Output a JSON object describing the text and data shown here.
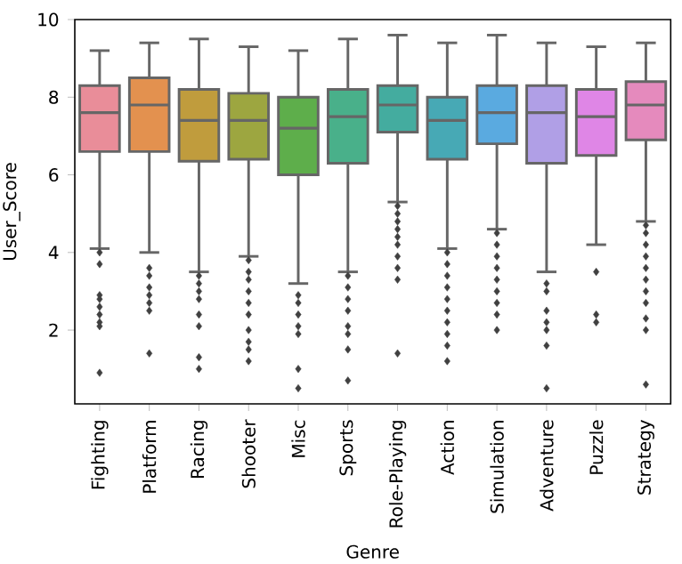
{
  "chart_data": {
    "type": "box",
    "xlabel": "Genre",
    "ylabel": "User_Score",
    "categories": [
      "Fighting",
      "Platform",
      "Racing",
      "Shooter",
      "Misc",
      "Sports",
      "Role-Playing",
      "Action",
      "Simulation",
      "Adventure",
      "Puzzle",
      "Strategy"
    ],
    "colors": [
      "#e98d99",
      "#e3914f",
      "#c09c3d",
      "#9da640",
      "#5eae4b",
      "#49b08a",
      "#44ac9f",
      "#47a9b5",
      "#5aaae0",
      "#b09fe6",
      "#df86e6",
      "#e58abd"
    ],
    "boxes": [
      {
        "low": 4.1,
        "q1": 6.6,
        "median": 7.6,
        "q3": 8.3,
        "high": 9.2,
        "outliers": [
          4.0,
          3.7,
          2.9,
          2.8,
          2.6,
          2.4,
          2.2,
          2.1,
          0.9
        ]
      },
      {
        "low": 4.0,
        "q1": 6.6,
        "median": 7.8,
        "q3": 8.5,
        "high": 9.4,
        "outliers": [
          3.6,
          3.4,
          3.1,
          2.9,
          2.7,
          2.5,
          1.4
        ]
      },
      {
        "low": 3.5,
        "q1": 6.35,
        "median": 7.4,
        "q3": 8.2,
        "high": 9.5,
        "outliers": [
          3.4,
          3.2,
          3.0,
          2.8,
          2.4,
          2.1,
          1.3,
          1.0
        ]
      },
      {
        "low": 3.9,
        "q1": 6.4,
        "median": 7.4,
        "q3": 8.1,
        "high": 9.3,
        "outliers": [
          3.8,
          3.5,
          3.3,
          3.0,
          2.7,
          2.4,
          2.0,
          1.7,
          1.5,
          1.2
        ]
      },
      {
        "low": 3.2,
        "q1": 6.0,
        "median": 7.2,
        "q3": 8.0,
        "high": 9.2,
        "outliers": [
          2.9,
          2.7,
          2.4,
          2.1,
          1.9,
          1.0,
          0.5
        ]
      },
      {
        "low": 3.5,
        "q1": 6.3,
        "median": 7.5,
        "q3": 8.2,
        "high": 9.5,
        "outliers": [
          3.4,
          3.1,
          2.8,
          2.5,
          2.1,
          1.9,
          1.5,
          0.7
        ]
      },
      {
        "low": 5.3,
        "q1": 7.1,
        "median": 7.8,
        "q3": 8.3,
        "high": 9.6,
        "outliers": [
          5.2,
          5.0,
          4.8,
          4.6,
          4.4,
          4.2,
          3.9,
          3.6,
          3.3,
          1.4
        ]
      },
      {
        "low": 4.1,
        "q1": 6.4,
        "median": 7.4,
        "q3": 8.0,
        "high": 9.4,
        "outliers": [
          4.0,
          3.7,
          3.4,
          3.1,
          2.8,
          2.5,
          2.2,
          1.9,
          1.6,
          1.2
        ]
      },
      {
        "low": 4.6,
        "q1": 6.8,
        "median": 7.6,
        "q3": 8.3,
        "high": 9.6,
        "outliers": [
          4.5,
          4.2,
          3.9,
          3.6,
          3.3,
          3.0,
          2.7,
          2.4,
          2.0
        ]
      },
      {
        "low": 3.5,
        "q1": 6.3,
        "median": 7.6,
        "q3": 8.3,
        "high": 9.4,
        "outliers": [
          3.2,
          3.0,
          2.5,
          2.2,
          2.0,
          1.6,
          0.5
        ]
      },
      {
        "low": 4.2,
        "q1": 6.5,
        "median": 7.5,
        "q3": 8.2,
        "high": 9.3,
        "outliers": [
          3.5,
          2.4,
          2.2
        ]
      },
      {
        "low": 4.8,
        "q1": 6.9,
        "median": 7.8,
        "q3": 8.4,
        "high": 9.4,
        "outliers": [
          4.7,
          4.5,
          4.2,
          3.9,
          3.6,
          3.3,
          3.0,
          2.7,
          2.3,
          2.0,
          0.6
        ]
      }
    ],
    "ylim": [
      0.1,
      10
    ],
    "yticks": [
      2,
      4,
      6,
      8,
      10
    ]
  }
}
